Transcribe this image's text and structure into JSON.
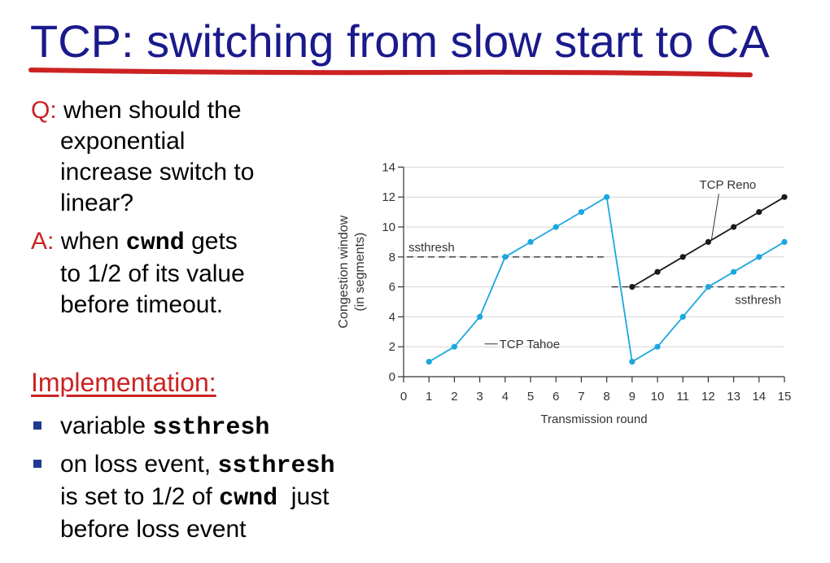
{
  "slide": {
    "title": "TCP: switching from slow start to CA",
    "accent_color": "#cc2222",
    "title_color": "#1a1a8c"
  },
  "question": {
    "label": "Q:",
    "line1": " when should the",
    "line2": "exponential",
    "line3": "increase switch to",
    "line4": "linear?"
  },
  "answer": {
    "label": "A:",
    "line1_pre": " when ",
    "line1_code": "cwnd",
    "line1_post": " gets",
    "line2": "to 1/2 of its value",
    "line3": "before timeout."
  },
  "implementation": {
    "heading": "Implementation:",
    "bullet1_pre": "variable ",
    "bullet1_code": "ssthresh",
    "bullet2_line1_pre": "on loss event, ",
    "bullet2_line1_code": "ssthresh",
    "bullet2_line2_pre": "is set to 1/2 of ",
    "bullet2_line2_code": "cwnd",
    "bullet2_line2_post": "  just",
    "bullet2_line3": "before loss event"
  },
  "chart_data": {
    "type": "line",
    "xlabel": "Transmission round",
    "ylabel": "Congestion window (in segments)",
    "ylabel_line1": "Congestion window",
    "ylabel_line2": "(in segments)",
    "xlim": [
      0,
      15
    ],
    "ylim": [
      0,
      14
    ],
    "x_ticks": [
      0,
      1,
      2,
      3,
      4,
      5,
      6,
      7,
      8,
      9,
      10,
      11,
      12,
      13,
      14,
      15
    ],
    "y_ticks": [
      0,
      2,
      4,
      6,
      8,
      10,
      12,
      14
    ],
    "grid": true,
    "series": [
      {
        "name": "TCP Tahoe",
        "color": "#1aa7e0",
        "points": [
          [
            1,
            1
          ],
          [
            2,
            2
          ],
          [
            3,
            4
          ],
          [
            4,
            8
          ],
          [
            5,
            9
          ],
          [
            6,
            10
          ],
          [
            7,
            11
          ],
          [
            8,
            12
          ],
          [
            9,
            1
          ],
          [
            10,
            2
          ],
          [
            11,
            4
          ],
          [
            12,
            6
          ],
          [
            13,
            7
          ],
          [
            14,
            8
          ],
          [
            15,
            9
          ]
        ]
      },
      {
        "name": "TCP Reno",
        "color": "#1a1a1a",
        "points": [
          [
            9,
            6
          ],
          [
            10,
            7
          ],
          [
            11,
            8
          ],
          [
            12,
            9
          ],
          [
            13,
            10
          ],
          [
            14,
            11
          ],
          [
            15,
            12
          ]
        ]
      }
    ],
    "thresholds": [
      {
        "label": "ssthresh",
        "value": 8,
        "x_from": 0,
        "x_to": 8
      },
      {
        "label": "ssthresh",
        "value": 6,
        "x_from": 8,
        "x_to": 15
      }
    ]
  }
}
